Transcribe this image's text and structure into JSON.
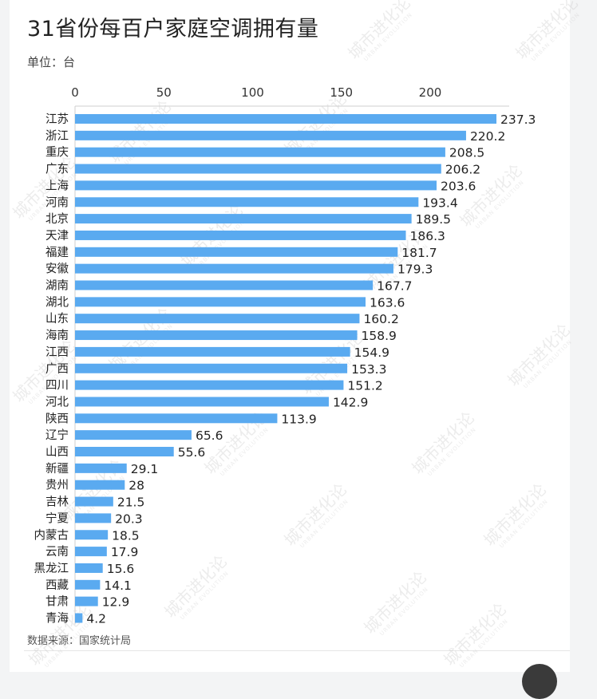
{
  "title": "31省份每百户家庭空调拥有量",
  "unit_label": "单位：台",
  "source": "数据来源：国家统计局",
  "watermark": {
    "text": "城市进化论",
    "sub": "URBAN EVOLUTION"
  },
  "colors": {
    "bar": "#5aaaf0",
    "text": "#222222",
    "axis": "#cfcfcf"
  },
  "chart_data": {
    "type": "bar",
    "orientation": "horizontal",
    "title": "31省份每百户家庭空调拥有量",
    "xlabel": "",
    "ylabel": "",
    "xlim": [
      0,
      240
    ],
    "xticks": [
      0,
      50,
      100,
      150,
      200
    ],
    "grid": false,
    "categories": [
      "江苏",
      "浙江",
      "重庆",
      "广东",
      "上海",
      "河南",
      "北京",
      "天津",
      "福建",
      "安徽",
      "湖南",
      "湖北",
      "山东",
      "海南",
      "江西",
      "广西",
      "四川",
      "河北",
      "陕西",
      "辽宁",
      "山西",
      "新疆",
      "贵州",
      "吉林",
      "宁夏",
      "内蒙古",
      "云南",
      "黑龙江",
      "西藏",
      "甘肃",
      "青海"
    ],
    "values": [
      237.3,
      220.2,
      208.5,
      206.2,
      203.6,
      193.4,
      189.5,
      186.3,
      181.7,
      179.3,
      167.7,
      163.6,
      160.2,
      158.9,
      154.9,
      153.3,
      151.2,
      142.9,
      113.9,
      65.6,
      55.6,
      29.1,
      28,
      21.5,
      20.3,
      18.5,
      17.9,
      15.6,
      14.1,
      12.9,
      4.2
    ],
    "value_labels": [
      "237.3",
      "220.2",
      "208.5",
      "206.2",
      "203.6",
      "193.4",
      "189.5",
      "186.3",
      "181.7",
      "179.3",
      "167.7",
      "163.6",
      "160.2",
      "158.9",
      "154.9",
      "153.3",
      "151.2",
      "142.9",
      "113.9",
      "65.6",
      "55.6",
      "29.1",
      "28",
      "21.5",
      "20.3",
      "18.5",
      "17.9",
      "15.6",
      "14.1",
      "12.9",
      "4.2"
    ]
  }
}
